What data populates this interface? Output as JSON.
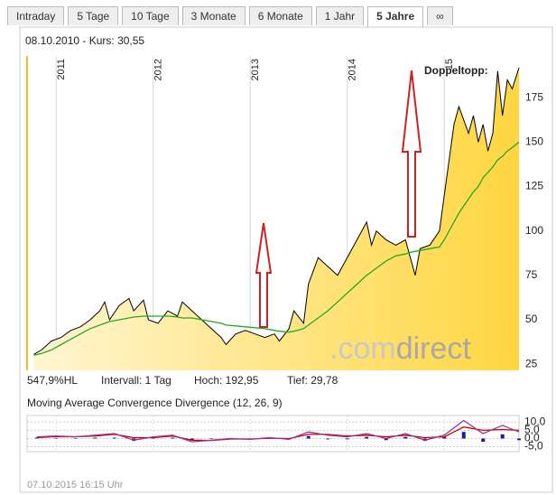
{
  "tabs": [
    {
      "label": "Intraday",
      "active": false
    },
    {
      "label": "5 Tage",
      "active": false
    },
    {
      "label": "10 Tage",
      "active": false
    },
    {
      "label": "3 Monate",
      "active": false
    },
    {
      "label": "6 Monate",
      "active": false
    },
    {
      "label": "1 Jahr",
      "active": false
    },
    {
      "label": "5 Jahre",
      "active": true
    },
    {
      "label": "∞",
      "active": false
    }
  ],
  "header": "08.10.2010  -  Kurs: 30,55",
  "watermark": [
    ".com",
    "direct"
  ],
  "stats": [
    "547,9%HL",
    "Intervall: 1 Tag",
    "Hoch: 192,95",
    "Tief: 29,78"
  ],
  "timestamp": "07.10.2015 16:15 Uhr",
  "chart_data": [
    {
      "type": "area",
      "annotations": [
        "Doppeltopp:"
      ],
      "x": [
        2010.77,
        2010.85,
        2010.95,
        2011.05,
        2011.15,
        2011.25,
        2011.35,
        2011.45,
        2011.5,
        2011.55,
        2011.65,
        2011.75,
        2011.8,
        2011.9,
        2011.95,
        2012.05,
        2012.15,
        2012.25,
        2012.3,
        2012.4,
        2012.5,
        2012.6,
        2012.7,
        2012.75,
        2012.85,
        2012.95,
        2013.05,
        2013.15,
        2013.25,
        2013.3,
        2013.4,
        2013.45,
        2013.55,
        2013.6,
        2013.7,
        2013.8,
        2013.9,
        2014.0,
        2014.1,
        2014.2,
        2014.25,
        2014.3,
        2014.4,
        2014.5,
        2014.6,
        2014.65,
        2014.7,
        2014.75,
        2014.85,
        2014.95,
        2015.0,
        2015.1,
        2015.15,
        2015.25,
        2015.3,
        2015.35,
        2015.4,
        2015.45,
        2015.5,
        2015.55,
        2015.6,
        2015.65,
        2015.7,
        2015.77
      ],
      "series": [
        {
          "kind": "area",
          "color": "#000000",
          "values": [
            30.5,
            33,
            38,
            40,
            44,
            46,
            50,
            55,
            60,
            50,
            58,
            62,
            55,
            61,
            50,
            48,
            55,
            52,
            60,
            55,
            50,
            45,
            40,
            36,
            42,
            44,
            42,
            40,
            42,
            38,
            45,
            55,
            48,
            70,
            85,
            80,
            75,
            85,
            95,
            105,
            92,
            100,
            95,
            92,
            95,
            85,
            75,
            90,
            92,
            100,
            120,
            160,
            170,
            155,
            165,
            150,
            160,
            145,
            155,
            190,
            165,
            185,
            180,
            192
          ]
        },
        {
          "kind": "line",
          "color": "#22aa22",
          "values": [
            30,
            31,
            33,
            36,
            39,
            42,
            45,
            47,
            48,
            49,
            50,
            51,
            51.5,
            52,
            52,
            52,
            52,
            51.5,
            51,
            51,
            50,
            49,
            48,
            47,
            46.5,
            46,
            45.5,
            45,
            44,
            43.5,
            43,
            43.5,
            45,
            47,
            51,
            55,
            60,
            65,
            70,
            75,
            77,
            79,
            83,
            86,
            87,
            88,
            88.5,
            89,
            90,
            91,
            95,
            105,
            110,
            118,
            122,
            125,
            130,
            133,
            136,
            140,
            142,
            145,
            147,
            150
          ]
        }
      ],
      "xlim": [
        2010.7,
        2015.77
      ],
      "xticks": [
        2011,
        2012,
        2013,
        2014,
        {
          "value": 2015,
          "label": "15"
        }
      ],
      "ylim": [
        21.5,
        198.5
      ],
      "yticks": [
        25,
        50,
        75,
        100,
        125,
        150,
        175
      ],
      "grid": true
    },
    {
      "type": "line",
      "title": "Moving Average Convergence Divergence (12, 26, 9)",
      "x": [
        2010.8,
        2011.0,
        2011.2,
        2011.4,
        2011.6,
        2011.8,
        2012.0,
        2012.2,
        2012.4,
        2012.6,
        2012.8,
        2013.0,
        2013.2,
        2013.4,
        2013.6,
        2013.8,
        2014.0,
        2014.2,
        2014.4,
        2014.6,
        2014.8,
        2015.0,
        2015.2,
        2015.4,
        2015.6,
        2015.77
      ],
      "series": [
        {
          "kind": "bar",
          "color": "#1a1aa0",
          "values": [
            0.5,
            0.3,
            -0.1,
            0.5,
            0.5,
            -1.5,
            0.5,
            0.5,
            -1,
            0.2,
            0.3,
            -0.2,
            0.3,
            -0.5,
            1.5,
            -0.5,
            -0.5,
            1,
            -1,
            1,
            -1.5,
            1,
            4,
            -2,
            2.5,
            -1
          ]
        },
        {
          "kind": "line",
          "color": "#cc0000",
          "values": [
            0.5,
            1.2,
            1.1,
            1.5,
            2.5,
            0.5,
            0.5,
            1.5,
            -1,
            -1.2,
            -0.3,
            -0.3,
            0.2,
            0,
            2.5,
            2.5,
            1.5,
            2,
            1,
            2,
            0.5,
            1,
            7,
            5,
            5.5,
            5
          ]
        },
        {
          "kind": "line",
          "color": "#993399",
          "values": [
            1,
            1.5,
            1,
            2,
            3,
            -1,
            1,
            2,
            -2,
            -1,
            0,
            -0.5,
            0.5,
            -0.5,
            4,
            2,
            1,
            3,
            0,
            3,
            -1,
            2,
            11,
            3,
            8,
            4
          ]
        }
      ],
      "xlim": [
        2010.7,
        2015.77
      ],
      "xticks": [
        2011,
        2012,
        2013,
        2014,
        2015
      ],
      "ylim": [
        -8,
        14
      ],
      "yticks": [
        {
          "value": 10,
          "label": "10,0"
        },
        {
          "value": 5,
          "label": "5,0"
        },
        {
          "value": 0,
          "label": "0,0"
        },
        {
          "value": -5,
          "label": "-5,0"
        }
      ],
      "grid": true
    }
  ]
}
